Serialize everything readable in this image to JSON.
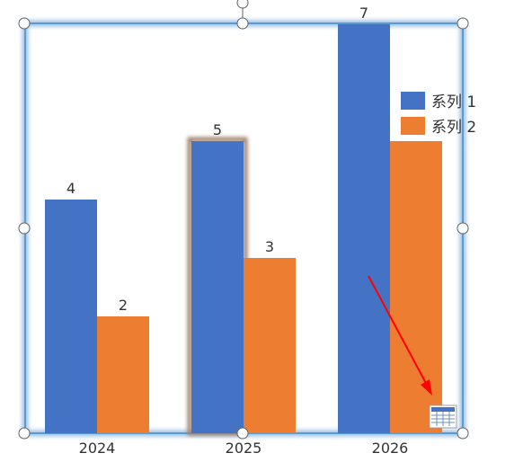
{
  "chart_data": {
    "type": "bar",
    "categories": [
      "2024",
      "2025",
      "2026"
    ],
    "series": [
      {
        "name": "系列 1",
        "values": [
          4,
          5,
          7
        ]
      },
      {
        "name": "系列 2",
        "values": [
          2,
          3,
          5
        ]
      }
    ],
    "data_labels": true,
    "ylim": [
      0,
      7
    ],
    "grid": false,
    "legend": {
      "placement": "right"
    },
    "colors": [
      "#4472C4",
      "#ED7D31"
    ]
  },
  "ui": {
    "selection_color": "#5B9BD5",
    "arrow_color": "#FF0000",
    "data_table_icon": "grid-table-icon"
  }
}
